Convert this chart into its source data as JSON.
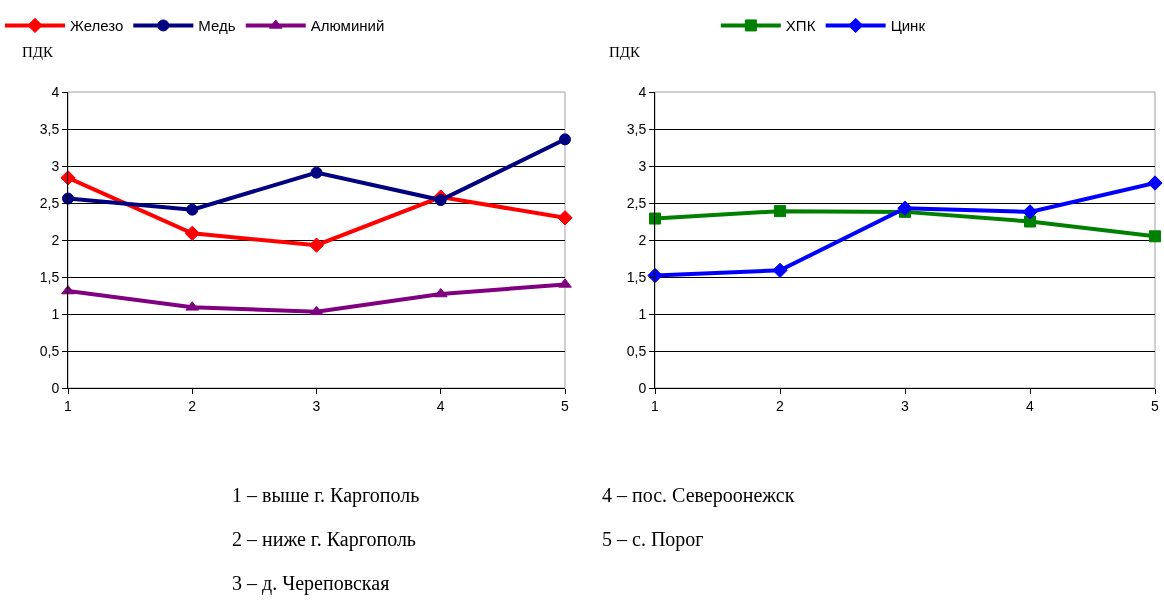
{
  "chart_data": [
    {
      "type": "line",
      "ylabel": "ПДК",
      "x": [
        1,
        2,
        3,
        4,
        5
      ],
      "xlim": [
        1,
        5
      ],
      "xticks": [
        1,
        2,
        3,
        4,
        5
      ],
      "ylim": [
        0,
        4
      ],
      "yticks": [
        0,
        {
          "value": 0.5,
          "label": "0,5"
        },
        1,
        {
          "value": 1.5,
          "label": "1,5"
        },
        2,
        {
          "value": 2.5,
          "label": "2,5"
        },
        3,
        {
          "value": 3.5,
          "label": "3,5"
        },
        4
      ],
      "grid": "y",
      "legend": "top",
      "series": [
        {
          "name": "Железо",
          "color": "#ff0000",
          "marker": "diamond",
          "values": [
            2.84,
            2.09,
            1.93,
            2.58,
            2.3
          ]
        },
        {
          "name": "Медь",
          "color": "#000080",
          "marker": "circle",
          "values": [
            2.56,
            2.41,
            2.91,
            2.54,
            3.36
          ]
        },
        {
          "name": "Алюминий",
          "color": "#800080",
          "marker": "triangle",
          "values": [
            1.31,
            1.09,
            1.03,
            1.27,
            1.4
          ]
        }
      ],
      "annotations": [
        "1 – выше г. Каргополь",
        "2 – ниже г. Каргополь",
        "3 – д. Череповская",
        "4 – пос. Североонежск",
        "5 – с. Порог"
      ]
    },
    {
      "type": "line",
      "ylabel": "ПДК",
      "x": [
        1,
        2,
        3,
        4,
        5
      ],
      "xlim": [
        1,
        5
      ],
      "xticks": [
        1,
        2,
        3,
        4,
        5
      ],
      "ylim": [
        0,
        4
      ],
      "yticks": [
        0,
        {
          "value": 0.5,
          "label": "0,5"
        },
        1,
        {
          "value": 1.5,
          "label": "1,5"
        },
        2,
        {
          "value": 2.5,
          "label": "2,5"
        },
        3,
        {
          "value": 3.5,
          "label": "3,5"
        },
        4
      ],
      "grid": "y",
      "legend": "top",
      "series": [
        {
          "name": "ХПК",
          "color": "#008000",
          "marker": "square",
          "values": [
            2.29,
            2.39,
            2.38,
            2.25,
            2.05
          ]
        },
        {
          "name": "Цинк",
          "color": "#0000ff",
          "marker": "diamond",
          "values": [
            1.52,
            1.59,
            2.43,
            2.38,
            2.77
          ]
        }
      ]
    }
  ]
}
